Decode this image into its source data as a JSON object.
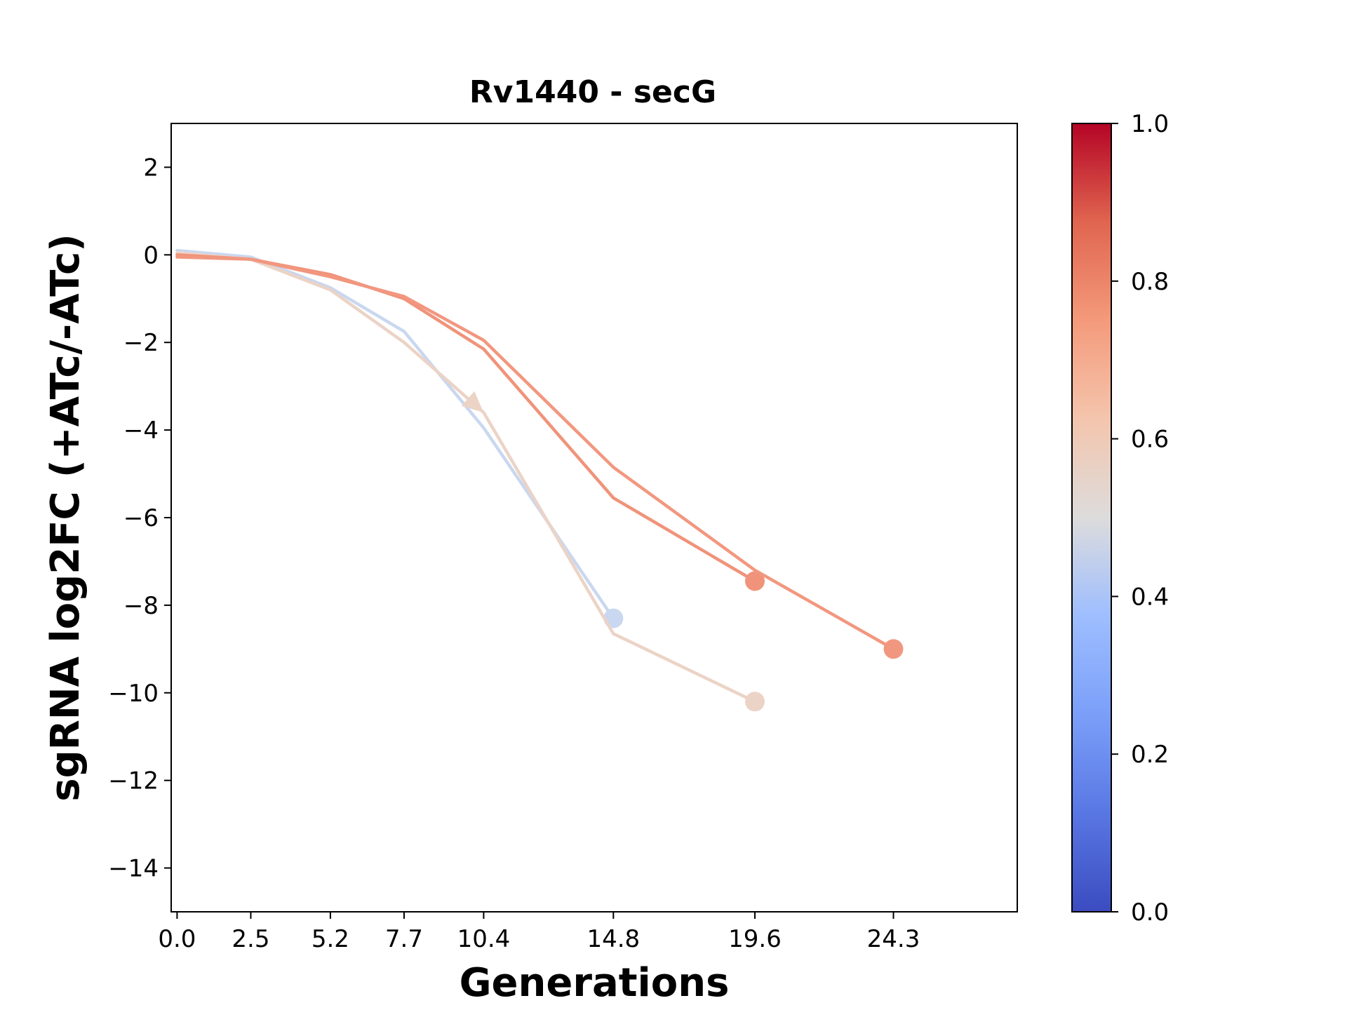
{
  "chart_data": {
    "type": "line",
    "title": "Rv1440 - secG",
    "xlabel": "Generations",
    "ylabel": "sgRNA log2FC (+ATc/-ATc)",
    "xlim": [
      -0.2,
      28.5
    ],
    "ylim": [
      -15,
      3
    ],
    "x_ticks": [
      0.0,
      2.5,
      5.2,
      7.7,
      10.4,
      14.8,
      19.6,
      24.3
    ],
    "x_tick_labels": [
      "0.0",
      "2.5",
      "5.2",
      "7.7",
      "10.4",
      "14.8",
      "19.6",
      "24.3"
    ],
    "y_ticks": [
      2,
      0,
      -2,
      -4,
      -6,
      -8,
      -10,
      -12,
      -14
    ],
    "y_tick_labels": [
      "2",
      "0",
      "−2",
      "−4",
      "−6",
      "−8",
      "−10",
      "−12",
      "−14"
    ],
    "grid": false,
    "colorbar": {
      "colormap": "coolwarm",
      "range": [
        0.0,
        1.0
      ],
      "tick_labels": [
        "0.0",
        "0.2",
        "0.4",
        "0.6",
        "0.8",
        "1.0"
      ],
      "colors": [
        "#3b4cc0",
        "#7b9ff9",
        "#c0d4f5",
        "#f2cbb7",
        "#ee8468",
        "#b40426"
      ]
    },
    "series": [
      {
        "color": "#c9d7f0",
        "colorbar_value": 0.45,
        "x": [
          0.0,
          2.5,
          5.2,
          7.7,
          10.4,
          14.8
        ],
        "y": [
          0.1,
          -0.05,
          -0.75,
          -1.75,
          -3.95,
          -8.3
        ]
      },
      {
        "color": "#ebd3c6",
        "colorbar_value": 0.58,
        "x": [
          0.0,
          2.5,
          5.2,
          7.7,
          10.4,
          14.8,
          19.6
        ],
        "y": [
          0.05,
          -0.1,
          -0.8,
          -2.0,
          -3.6,
          -8.65,
          -10.2
        ]
      },
      {
        "color": "#f0937a",
        "colorbar_value": 0.78,
        "x": [
          0.0,
          2.5,
          5.2,
          7.7,
          10.4,
          14.8,
          19.6
        ],
        "y": [
          0.0,
          -0.1,
          -0.45,
          -1.0,
          -2.15,
          -5.55,
          -7.45
        ]
      },
      {
        "color": "#f2977f",
        "colorbar_value": 0.76,
        "x": [
          0.0,
          2.5,
          5.2,
          7.7,
          10.4,
          14.8,
          19.6,
          24.3
        ],
        "y": [
          -0.05,
          -0.1,
          -0.5,
          -0.95,
          -1.95,
          -4.85,
          -7.2,
          -9.0
        ]
      }
    ]
  }
}
